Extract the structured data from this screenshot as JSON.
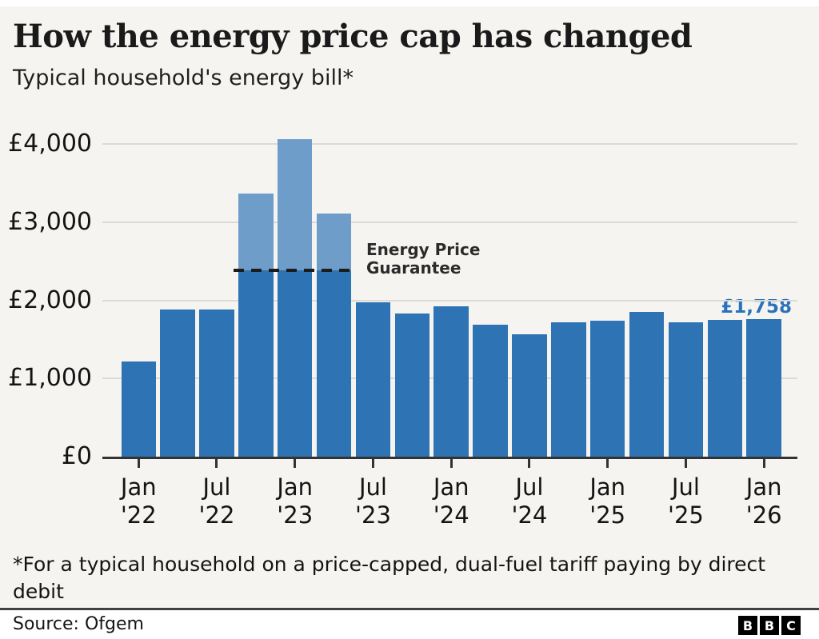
{
  "header": {
    "title": "How the energy price cap has changed",
    "subtitle": "Typical household's energy bill*"
  },
  "chart_data": {
    "type": "bar",
    "title": "How the energy price cap has changed",
    "subtitle": "Typical household's energy bill*",
    "unit": "£ per year",
    "categories": [
      "Jan '22",
      "Apr '22",
      "Jul '22",
      "Oct '22",
      "Jan '23",
      "Apr '23",
      "Jul '23",
      "Oct '23",
      "Jan '24",
      "Apr '24",
      "Jul '24",
      "Oct '24",
      "Jan '25",
      "Apr '25",
      "Jul '25",
      "Oct '25",
      "Jan '26"
    ],
    "values": [
      1216,
      1880,
      1880,
      3370,
      4059,
      3116,
      1976,
      1834,
      1928,
      1690,
      1568,
      1717,
      1738,
      1849,
      1720,
      1755,
      1758
    ],
    "bars_above_guarantee": [
      3,
      4,
      5
    ],
    "guarantee": {
      "value": 2380,
      "label": "Energy Price\nGuarantee"
    },
    "end_label": {
      "text": "£1,758"
    },
    "y_axis": {
      "min": 0,
      "max": 4300,
      "grid": true,
      "ticks": [
        {
          "value": 0,
          "label": "£0"
        },
        {
          "value": 1000,
          "label": "£1,000"
        },
        {
          "value": 2000,
          "label": "£2,000"
        },
        {
          "value": 3000,
          "label": "£3,000"
        },
        {
          "value": 4000,
          "label": "£4,000"
        }
      ]
    },
    "x_axis": {
      "ticks": [
        {
          "bar": 0,
          "label": "Jan\n'22"
        },
        {
          "bar": 2,
          "label": "Jul\n'22"
        },
        {
          "bar": 4,
          "label": "Jan\n'23"
        },
        {
          "bar": 6,
          "label": "Jul\n'23"
        },
        {
          "bar": 8,
          "label": "Jan\n'24"
        },
        {
          "bar": 10,
          "label": "Jul\n'24"
        },
        {
          "bar": 12,
          "label": "Jan\n'25"
        },
        {
          "bar": 14,
          "label": "Jul\n'25"
        },
        {
          "bar": 16,
          "label": "Jan\n'26"
        }
      ]
    },
    "colors": {
      "bar": "#2e74b4",
      "bar_above_guarantee": "#6f9dc9",
      "guarantee_line": "#1c1c1c",
      "end_label": "#2a72b9",
      "background": "#f5f4f1"
    },
    "legend": "none"
  },
  "footnote": {
    "text": "*For a typical household on a price-capped, dual-fuel tariff paying by direct\ndebit"
  },
  "footer": {
    "source": "Source: Ofgem",
    "logo_letters": [
      "B",
      "B",
      "C"
    ]
  }
}
